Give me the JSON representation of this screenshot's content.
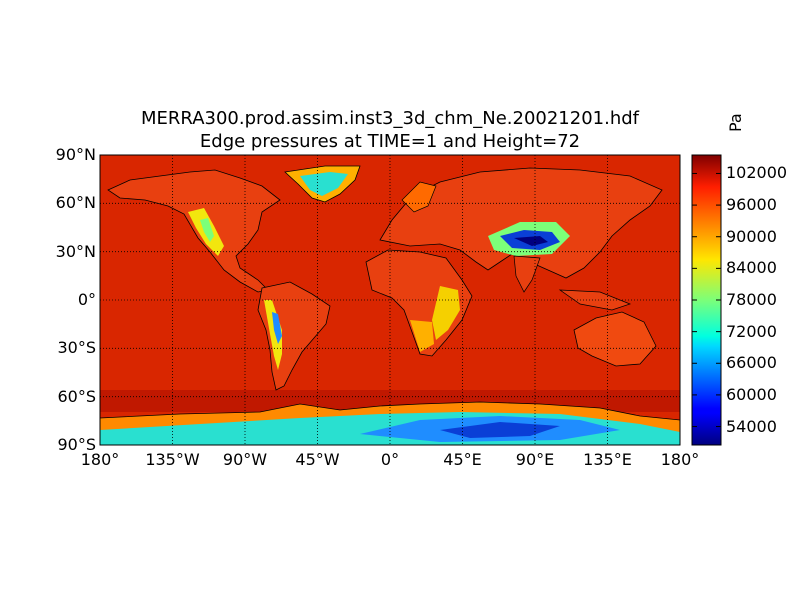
{
  "title": {
    "line1": "MERRA300.prod.assim.inst3_3d_chm_Ne.20021201.hdf",
    "line2": "Edge pressures at TIME=1 and Height=72"
  },
  "map": {
    "projection": "cylindrical-equidistant",
    "lon_range": [
      -180,
      180
    ],
    "lat_range": [
      -90,
      90
    ],
    "grid": "dotted",
    "lat_labels": [
      "90°N",
      "60°N",
      "30°N",
      "0°",
      "30°S",
      "60°S",
      "90°S"
    ],
    "lat_values": [
      90,
      60,
      30,
      0,
      -30,
      -60,
      -90
    ],
    "lon_labels": [
      "180°",
      "135°W",
      "90°W",
      "45°W",
      "0°",
      "45°E",
      "90°E",
      "135°E",
      "180°"
    ],
    "lon_values": [
      -180,
      -135,
      -90,
      -45,
      0,
      45,
      90,
      135,
      180
    ],
    "ocean_color": "#d92600",
    "regions": [
      {
        "name": "greenland-plateau",
        "level": 70000,
        "color": "#29e0d0"
      },
      {
        "name": "antarctic-plateau",
        "level": 63000,
        "color": "#1f8dff"
      },
      {
        "name": "tibetan-plateau",
        "level": 58000,
        "color": "#0a3fd6"
      },
      {
        "name": "andes",
        "level": 72000,
        "color": "#36d8a8"
      },
      {
        "name": "rocky-mountains",
        "level": 84000,
        "color": "#f2e60e"
      },
      {
        "name": "east-africa-highlands",
        "level": 86000,
        "color": "#f5d000"
      }
    ]
  },
  "colorbar": {
    "unit": "Pa",
    "ticks": [
      102000,
      96000,
      90000,
      84000,
      78000,
      72000,
      66000,
      60000,
      54000
    ],
    "tick_labels": [
      "102000",
      "96000",
      "90000",
      "84000",
      "78000",
      "72000",
      "66000",
      "60000",
      "54000"
    ],
    "min": 50500,
    "max": 105500,
    "colormap": "jet"
  }
}
